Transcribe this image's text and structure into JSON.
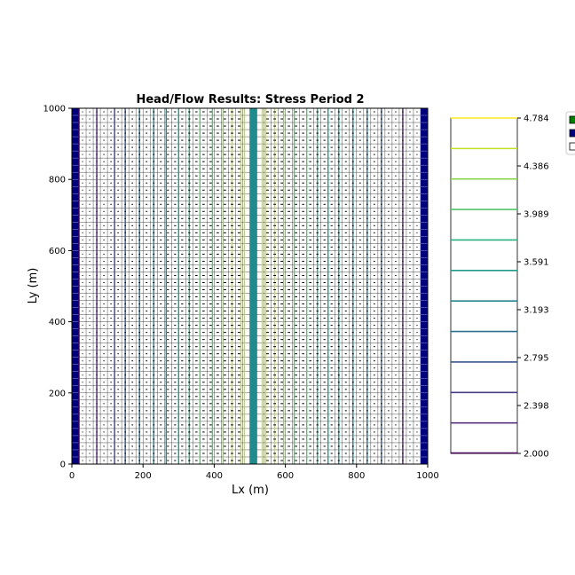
{
  "chart_data": {
    "type": "contour",
    "title": "Head/Flow Results: Stress Period 2",
    "xlabel": "Lx (m)",
    "ylabel": "Ly (m)",
    "xlim": [
      0,
      1000
    ],
    "ylim": [
      0,
      1000
    ],
    "xticks": [
      "0",
      "200",
      "400",
      "600",
      "800",
      "1000"
    ],
    "yticks": [
      "0",
      "200",
      "400",
      "600",
      "800",
      "1000"
    ],
    "grid_columns": 50,
    "grid_rows": 50,
    "boundary_columns": [
      {
        "name": "",
        "x_range": [
          0,
          20
        ],
        "color": "#00007f"
      },
      {
        "name": "",
        "x_range": [
          980,
          1000
        ],
        "color": "#00007f"
      }
    ],
    "center_column": {
      "name": "",
      "x_range": [
        500,
        520
      ],
      "color": "#218a8d"
    },
    "contour_x": [
      20,
      70,
      120,
      150,
      190,
      230,
      265,
      300,
      330,
      360,
      395,
      425,
      450,
      475,
      485,
      535,
      545,
      570,
      595,
      625,
      660,
      690,
      720,
      750,
      790,
      830,
      870,
      930
    ],
    "contour_levels": [
      2.0,
      2.199,
      2.398,
      2.597,
      2.795,
      2.994,
      3.193,
      3.392,
      3.591,
      3.79,
      3.989,
      4.188,
      4.386,
      4.585,
      4.784
    ],
    "colorbar": {
      "ticks": [
        "4.784",
        "4.386",
        "3.989",
        "3.591",
        "3.193",
        "2.795",
        "2.398",
        "2.000"
      ],
      "colors": [
        "#440154",
        "#482173",
        "#433e85",
        "#38588c",
        "#2d708e",
        "#25858e",
        "#1e9b8a",
        "#2ab07f",
        "#52c569",
        "#86d549",
        "#c2df23",
        "#fde725"
      ]
    },
    "legend": {
      "placement": "right",
      "entries": [
        {
          "label": "",
          "color": "#007f00"
        },
        {
          "label": "",
          "color": "#00007f"
        },
        {
          "label": "",
          "color": "#ffffff"
        }
      ]
    },
    "colors": {
      "axes": "#000000",
      "grid": "#000000"
    }
  }
}
